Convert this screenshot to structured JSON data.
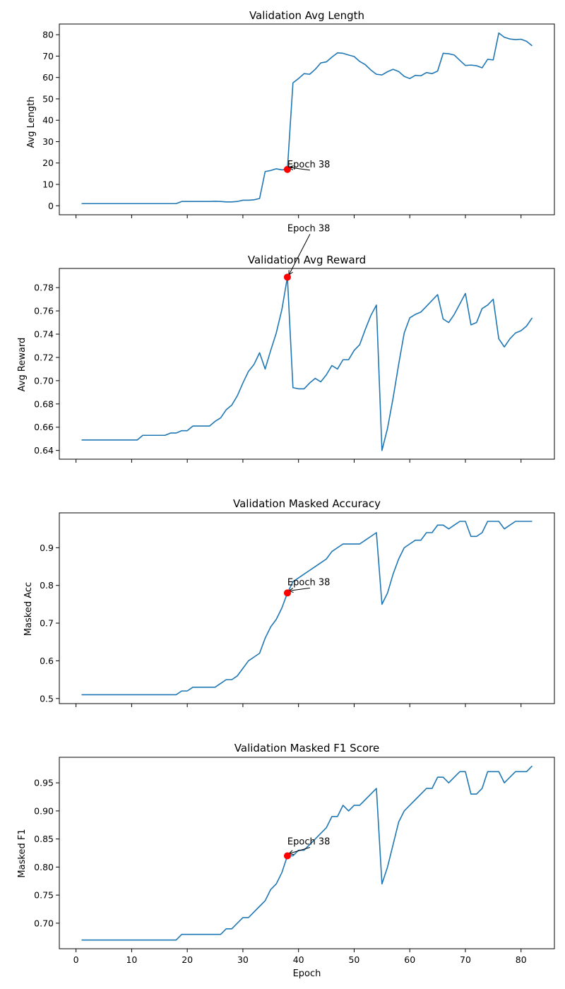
{
  "colors": {
    "series": "#1f77b4",
    "marker": "#ff0000"
  },
  "chart_data": [
    {
      "type": "line",
      "title": "Validation Avg Length",
      "xlabel": "",
      "ylabel": "Avg Length",
      "xlim": [
        -3,
        86
      ],
      "ylim": [
        -4.2,
        85
      ],
      "xticks": [
        0,
        10,
        20,
        30,
        40,
        50,
        60,
        70,
        80
      ],
      "yticks": [
        0,
        10,
        20,
        30,
        40,
        50,
        60,
        70,
        80
      ],
      "ytick_labels": [
        "0",
        "10",
        "20",
        "30",
        "40",
        "50",
        "60",
        "70",
        "80"
      ],
      "x": [
        1,
        2,
        3,
        4,
        5,
        6,
        7,
        8,
        9,
        10,
        11,
        12,
        13,
        14,
        15,
        16,
        17,
        18,
        19,
        20,
        21,
        22,
        23,
        24,
        25,
        26,
        27,
        28,
        29,
        30,
        31,
        32,
        33,
        34,
        35,
        36,
        37,
        38,
        39,
        40,
        41,
        42,
        43,
        44,
        45,
        46,
        47,
        48,
        49,
        50,
        51,
        52,
        53,
        54,
        55,
        56,
        57,
        58,
        59,
        60,
        61,
        62,
        63,
        64,
        65,
        66,
        67,
        68,
        69,
        70,
        71,
        72,
        73,
        74,
        75,
        76,
        77,
        78,
        79,
        80,
        81,
        82
      ],
      "values": [
        1.0,
        1.0,
        1.0,
        1.0,
        1.0,
        1.0,
        1.0,
        1.0,
        1.0,
        1.0,
        1.0,
        1.0,
        1.0,
        1.0,
        1.0,
        1.0,
        1.0,
        1.0,
        2.0,
        2.0,
        2.0,
        2.0,
        2.0,
        2.0,
        2.1,
        2.0,
        1.8,
        1.8,
        2.0,
        2.6,
        2.6,
        2.8,
        3.4,
        16.0,
        16.5,
        17.3,
        16.8,
        17.0,
        57.5,
        59.5,
        61.8,
        61.5,
        63.8,
        66.8,
        67.3,
        69.5,
        71.5,
        71.3,
        70.5,
        69.8,
        67.5,
        66.0,
        63.5,
        61.5,
        61.2,
        62.7,
        63.8,
        62.8,
        60.5,
        59.5,
        61.0,
        60.8,
        62.3,
        61.8,
        63.0,
        71.3,
        71.1,
        70.5,
        68.0,
        65.6,
        65.8,
        65.5,
        64.5,
        68.5,
        68.2,
        80.8,
        78.8,
        78.0,
        77.7,
        77.9,
        76.9,
        74.8
      ],
      "highlight": {
        "x": 38,
        "y": 17.0,
        "label": "Epoch 38"
      },
      "grid": false
    },
    {
      "type": "line",
      "title": "Validation Avg Reward",
      "xlabel": "",
      "ylabel": "Avg Reward",
      "xlim": [
        -3,
        86
      ],
      "ylim": [
        0.6325,
        0.7965
      ],
      "xticks": [
        0,
        10,
        20,
        30,
        40,
        50,
        60,
        70,
        80
      ],
      "yticks": [
        0.64,
        0.66,
        0.68,
        0.7,
        0.72,
        0.74,
        0.76,
        0.78
      ],
      "ytick_labels": [
        "0.64",
        "0.66",
        "0.68",
        "0.70",
        "0.72",
        "0.74",
        "0.76",
        "0.78"
      ],
      "x": [
        1,
        2,
        3,
        4,
        5,
        6,
        7,
        8,
        9,
        10,
        11,
        12,
        13,
        14,
        15,
        16,
        17,
        18,
        19,
        20,
        21,
        22,
        23,
        24,
        25,
        26,
        27,
        28,
        29,
        30,
        31,
        32,
        33,
        34,
        35,
        36,
        37,
        38,
        39,
        40,
        41,
        42,
        43,
        44,
        45,
        46,
        47,
        48,
        49,
        50,
        51,
        52,
        53,
        54,
        55,
        56,
        57,
        58,
        59,
        60,
        61,
        62,
        63,
        64,
        65,
        66,
        67,
        68,
        69,
        70,
        71,
        72,
        73,
        74,
        75,
        76,
        77,
        78,
        79,
        80,
        81,
        82
      ],
      "values": [
        0.649,
        0.649,
        0.649,
        0.649,
        0.649,
        0.649,
        0.649,
        0.649,
        0.649,
        0.649,
        0.649,
        0.653,
        0.653,
        0.653,
        0.653,
        0.653,
        0.655,
        0.655,
        0.657,
        0.657,
        0.661,
        0.661,
        0.661,
        0.661,
        0.665,
        0.668,
        0.675,
        0.679,
        0.687,
        0.698,
        0.708,
        0.714,
        0.724,
        0.71,
        0.726,
        0.741,
        0.761,
        0.789,
        0.694,
        0.693,
        0.693,
        0.698,
        0.702,
        0.699,
        0.705,
        0.713,
        0.71,
        0.718,
        0.718,
        0.726,
        0.731,
        0.744,
        0.756,
        0.765,
        0.64,
        0.659,
        0.685,
        0.714,
        0.741,
        0.754,
        0.757,
        0.759,
        0.764,
        0.769,
        0.774,
        0.753,
        0.75,
        0.757,
        0.766,
        0.775,
        0.748,
        0.75,
        0.762,
        0.765,
        0.77,
        0.736,
        0.729,
        0.736,
        0.741,
        0.743,
        0.747,
        0.754
      ],
      "highlight": {
        "x": 38,
        "y": 0.789,
        "label": "Epoch 38"
      },
      "grid": false
    },
    {
      "type": "line",
      "title": "Validation Masked Accuracy",
      "xlabel": "",
      "ylabel": "Masked Acc",
      "xlim": [
        -3,
        86
      ],
      "ylim": [
        0.4865,
        0.9925
      ],
      "xticks": [
        0,
        10,
        20,
        30,
        40,
        50,
        60,
        70,
        80
      ],
      "yticks": [
        0.5,
        0.6,
        0.7,
        0.8,
        0.9
      ],
      "ytick_labels": [
        "0.5",
        "0.6",
        "0.7",
        "0.8",
        "0.9"
      ],
      "x": [
        1,
        2,
        3,
        4,
        5,
        6,
        7,
        8,
        9,
        10,
        11,
        12,
        13,
        14,
        15,
        16,
        17,
        18,
        19,
        20,
        21,
        22,
        23,
        24,
        25,
        26,
        27,
        28,
        29,
        30,
        31,
        32,
        33,
        34,
        35,
        36,
        37,
        38,
        39,
        40,
        41,
        42,
        43,
        44,
        45,
        46,
        47,
        48,
        49,
        50,
        51,
        52,
        53,
        54,
        55,
        56,
        57,
        58,
        59,
        60,
        61,
        62,
        63,
        64,
        65,
        66,
        67,
        68,
        69,
        70,
        71,
        72,
        73,
        74,
        75,
        76,
        77,
        78,
        79,
        80,
        81,
        82
      ],
      "values": [
        0.51,
        0.51,
        0.51,
        0.51,
        0.51,
        0.51,
        0.51,
        0.51,
        0.51,
        0.51,
        0.51,
        0.51,
        0.51,
        0.51,
        0.51,
        0.51,
        0.51,
        0.51,
        0.52,
        0.52,
        0.53,
        0.53,
        0.53,
        0.53,
        0.53,
        0.54,
        0.55,
        0.55,
        0.56,
        0.58,
        0.6,
        0.61,
        0.62,
        0.66,
        0.69,
        0.71,
        0.74,
        0.78,
        0.81,
        0.82,
        0.83,
        0.84,
        0.85,
        0.86,
        0.87,
        0.89,
        0.9,
        0.91,
        0.91,
        0.91,
        0.91,
        0.92,
        0.93,
        0.94,
        0.75,
        0.78,
        0.83,
        0.87,
        0.9,
        0.91,
        0.92,
        0.92,
        0.94,
        0.94,
        0.96,
        0.96,
        0.95,
        0.96,
        0.97,
        0.97,
        0.93,
        0.93,
        0.94,
        0.97,
        0.97,
        0.97,
        0.95,
        0.96,
        0.97,
        0.97,
        0.97,
        0.97
      ],
      "highlight": {
        "x": 38,
        "y": 0.78,
        "label": "Epoch 38"
      },
      "grid": false
    },
    {
      "type": "line",
      "title": "Validation Masked F1 Score",
      "xlabel": "Epoch",
      "ylabel": "Masked F1",
      "xlim": [
        -3,
        86
      ],
      "ylim": [
        0.6545,
        0.9955
      ],
      "xticks": [
        0,
        10,
        20,
        30,
        40,
        50,
        60,
        70,
        80
      ],
      "xtick_labels": [
        "0",
        "10",
        "20",
        "30",
        "40",
        "50",
        "60",
        "70",
        "80"
      ],
      "yticks": [
        0.7,
        0.75,
        0.8,
        0.85,
        0.9,
        0.95
      ],
      "ytick_labels": [
        "0.70",
        "0.75",
        "0.80",
        "0.85",
        "0.90",
        "0.95"
      ],
      "x": [
        1,
        2,
        3,
        4,
        5,
        6,
        7,
        8,
        9,
        10,
        11,
        12,
        13,
        14,
        15,
        16,
        17,
        18,
        19,
        20,
        21,
        22,
        23,
        24,
        25,
        26,
        27,
        28,
        29,
        30,
        31,
        32,
        33,
        34,
        35,
        36,
        37,
        38,
        39,
        40,
        41,
        42,
        43,
        44,
        45,
        46,
        47,
        48,
        49,
        50,
        51,
        52,
        53,
        54,
        55,
        56,
        57,
        58,
        59,
        60,
        61,
        62,
        63,
        64,
        65,
        66,
        67,
        68,
        69,
        70,
        71,
        72,
        73,
        74,
        75,
        76,
        77,
        78,
        79,
        80,
        81,
        82
      ],
      "values": [
        0.67,
        0.67,
        0.67,
        0.67,
        0.67,
        0.67,
        0.67,
        0.67,
        0.67,
        0.67,
        0.67,
        0.67,
        0.67,
        0.67,
        0.67,
        0.67,
        0.67,
        0.67,
        0.68,
        0.68,
        0.68,
        0.68,
        0.68,
        0.68,
        0.68,
        0.68,
        0.69,
        0.69,
        0.7,
        0.71,
        0.71,
        0.72,
        0.73,
        0.74,
        0.76,
        0.77,
        0.79,
        0.82,
        0.82,
        0.83,
        0.83,
        0.84,
        0.85,
        0.86,
        0.87,
        0.89,
        0.89,
        0.91,
        0.9,
        0.91,
        0.91,
        0.92,
        0.93,
        0.94,
        0.77,
        0.8,
        0.84,
        0.88,
        0.9,
        0.91,
        0.92,
        0.93,
        0.94,
        0.94,
        0.96,
        0.96,
        0.95,
        0.96,
        0.97,
        0.97,
        0.93,
        0.93,
        0.94,
        0.97,
        0.97,
        0.97,
        0.95,
        0.96,
        0.97,
        0.97,
        0.97,
        0.98
      ],
      "highlight": {
        "x": 38,
        "y": 0.82,
        "label": "Epoch 38"
      },
      "grid": false
    }
  ]
}
